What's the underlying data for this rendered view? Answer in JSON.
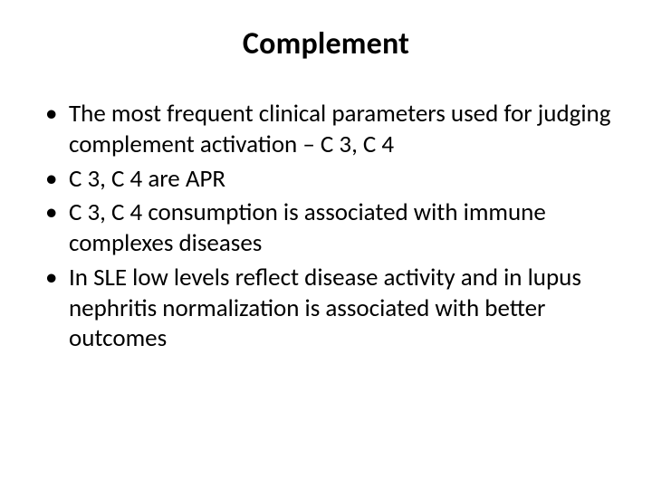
{
  "slide": {
    "title": "Complement",
    "bullets": [
      "The most frequent clinical parameters used for judging complement activation – C 3, C 4",
      "C 3, C 4 are APR",
      "C 3, C 4 consumption is associated with immune complexes diseases",
      "In SLE low levels reflect disease activity and in lupus nephritis normalization is associated with better outcomes"
    ],
    "title_fontsize": 34,
    "body_fontsize": 27,
    "text_color": "#000000",
    "background_color": "#ffffff"
  }
}
